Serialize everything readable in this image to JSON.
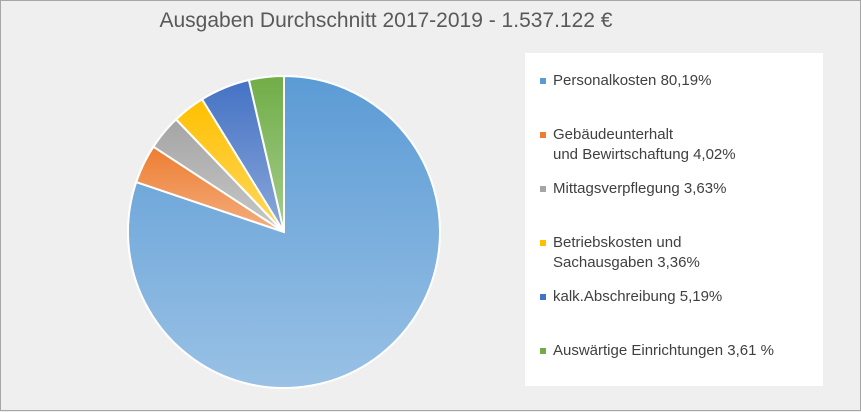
{
  "chart_data": {
    "type": "pie",
    "title": "Ausgaben Durchschnitt 2017-2019 - 1.537.122 €",
    "slices": [
      {
        "label": "Personalkosten  80,19%",
        "value": 80.19,
        "color": "#5b9bd5"
      },
      {
        "label": "Gebäudeunterhalt\nund Bewirtschaftung 4,02%",
        "value": 4.02,
        "color": "#ed7d31"
      },
      {
        "label": "Mittagsverpflegung  3,63%",
        "value": 3.63,
        "color": "#a5a5a5"
      },
      {
        "label": "Betriebskosten und\nSachausgaben  3,36%",
        "value": 3.36,
        "color": "#ffc000"
      },
      {
        "label": "kalk.Abschreibung  5,19%",
        "value": 5.19,
        "color": "#4472c4"
      },
      {
        "label": "Auswärtige Einrichtungen 3,61 %",
        "value": 3.61,
        "color": "#70ad47"
      }
    ],
    "legend_position": "right"
  }
}
